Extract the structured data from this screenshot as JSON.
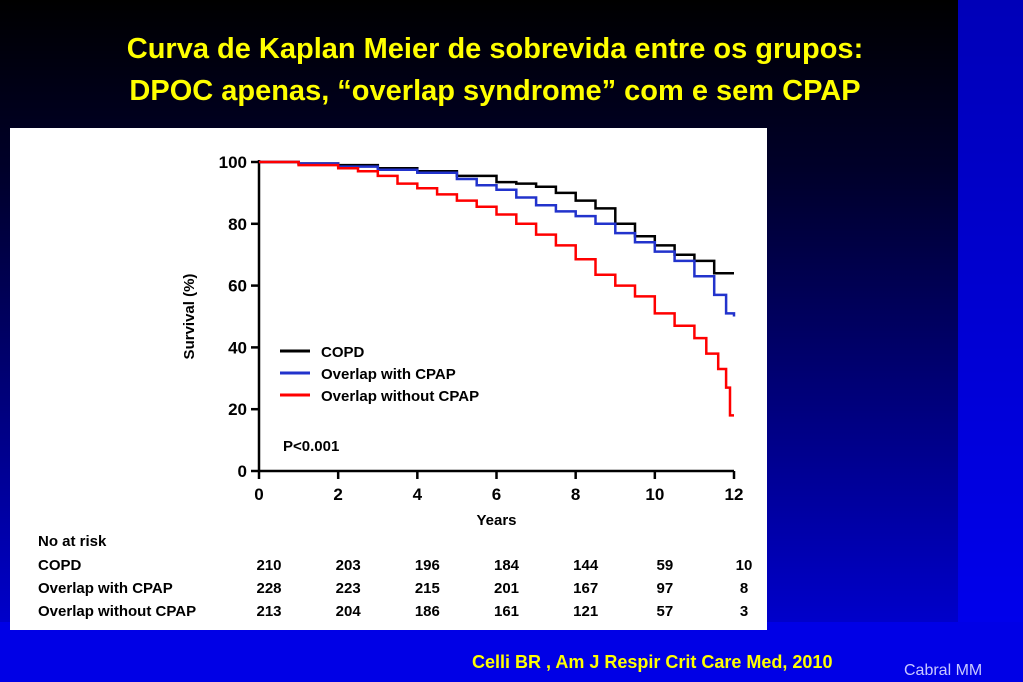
{
  "slide": {
    "title_line1": "Curva de Kaplan Meier de sobrevida entre os grupos:",
    "title_line2": "DPOC apenas, “overlap syndrome” com e sem CPAP",
    "citation": "Celli BR , Am J Respir Crit Care Med, 2010",
    "author": "Cabral MM"
  },
  "colors": {
    "title": "#ffff00",
    "copd": "#000000",
    "cpap": "#2233cc",
    "no_cpap": "#ff0000"
  },
  "chart_data": {
    "type": "line",
    "title": "",
    "xlabel": "Years",
    "ylabel": "Survival (%)",
    "xlim": [
      0,
      12
    ],
    "ylim": [
      0,
      100
    ],
    "xticks": [
      0,
      2,
      4,
      6,
      8,
      10,
      12
    ],
    "yticks": [
      0,
      20,
      40,
      60,
      80,
      100
    ],
    "legend_position": "center-left",
    "annotation": "P<0.001",
    "series": [
      {
        "name": "COPD",
        "color": "#000000",
        "x": [
          0,
          1,
          2,
          3,
          4,
          5,
          6,
          6.5,
          7,
          7.5,
          8,
          8.5,
          9,
          9.5,
          10,
          10.5,
          11,
          11.5,
          12
        ],
        "y": [
          100,
          99.5,
          99,
          98,
          97,
          95.5,
          93.5,
          93,
          92,
          90,
          87.5,
          85,
          80,
          76,
          73,
          70,
          68,
          64,
          64
        ]
      },
      {
        "name": "Overlap with CPAP",
        "color": "#2233cc",
        "x": [
          0,
          1,
          2,
          3,
          4,
          5,
          5.5,
          6,
          6.5,
          7,
          7.5,
          8,
          8.5,
          9,
          9.5,
          10,
          10.5,
          11,
          11.5,
          11.8,
          12
        ],
        "y": [
          100,
          99.5,
          98.5,
          97.5,
          96.5,
          94.5,
          92.5,
          91,
          88.5,
          86,
          84,
          82.5,
          80,
          77,
          74,
          71,
          68,
          63,
          57,
          51,
          50
        ]
      },
      {
        "name": "Overlap without CPAP",
        "color": "#ff0000",
        "x": [
          0,
          1,
          2,
          2.5,
          3,
          3.5,
          4,
          4.5,
          5,
          5.5,
          6,
          6.5,
          7,
          7.5,
          8,
          8.5,
          9,
          9.5,
          10,
          10.5,
          11,
          11.3,
          11.6,
          11.8,
          11.9,
          12
        ],
        "y": [
          100,
          99,
          98,
          97,
          95.5,
          93,
          91.5,
          89.5,
          87.5,
          85.5,
          83,
          80,
          76.5,
          73,
          68.5,
          63.5,
          60,
          56.5,
          51,
          47,
          43,
          38,
          33,
          27,
          18,
          18
        ]
      }
    ],
    "risk_table": {
      "header": "No at risk",
      "timepoints": [
        0,
        2,
        4,
        6,
        8,
        10,
        12
      ],
      "rows": [
        {
          "label": "COPD",
          "values": [
            "210",
            "203",
            "196",
            "184",
            "144",
            "59",
            "10"
          ]
        },
        {
          "label": "Overlap with CPAP",
          "values": [
            "228",
            "223",
            "215",
            "201",
            "167",
            "97",
            "8"
          ]
        },
        {
          "label": "Overlap without CPAP",
          "values": [
            "213",
            "204",
            "186",
            "161",
            "121",
            "57",
            "3"
          ]
        }
      ]
    }
  }
}
